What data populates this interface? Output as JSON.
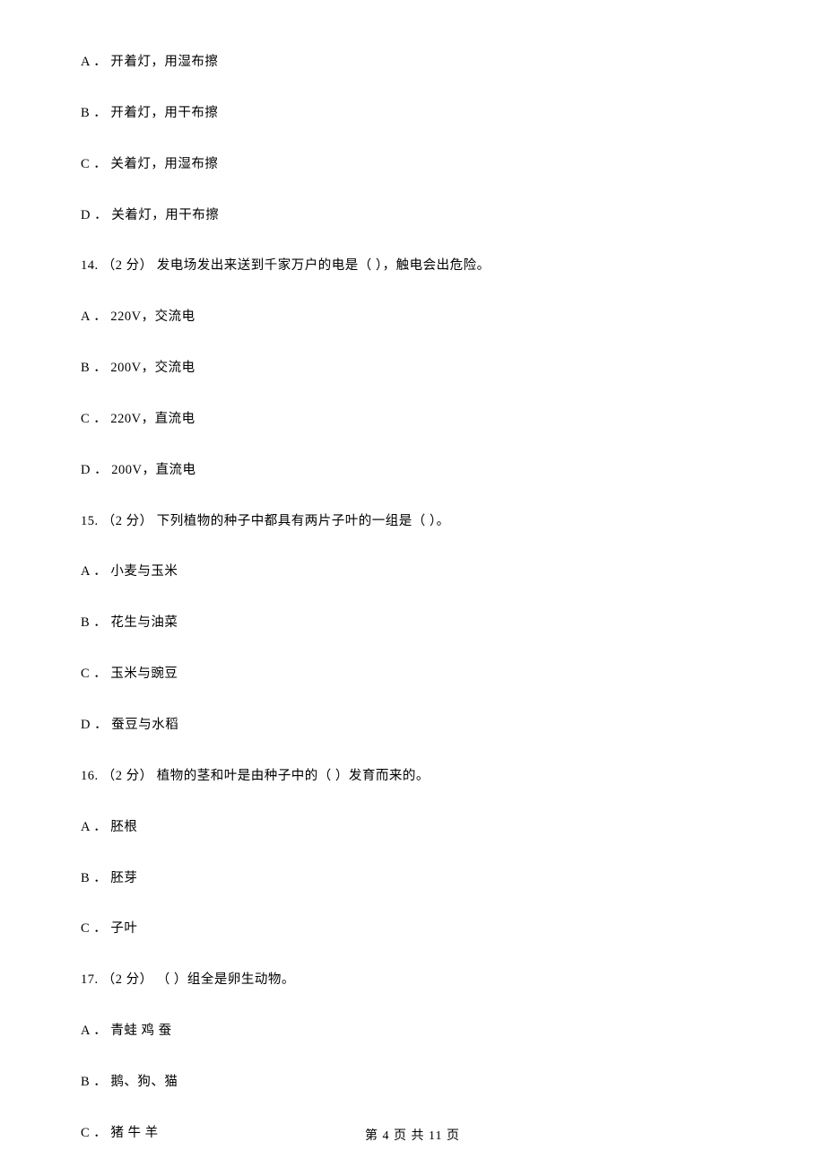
{
  "q13_options": {
    "A": "A ． 开着灯，用湿布擦",
    "B": "B ． 开着灯，用干布擦",
    "C": "C ． 关着灯，用湿布擦",
    "D": "D ． 关着灯，用干布擦"
  },
  "q14": {
    "stem": "14. （2 分） 发电场发出来送到千家万户的电是（    ），触电会出危险。",
    "A": "A ． 220V，交流电",
    "B": "B ． 200V，交流电",
    "C": "C ． 220V，直流电",
    "D": "D ． 200V，直流电"
  },
  "q15": {
    "stem": "15. （2 分） 下列植物的种子中都具有两片子叶的一组是（    ）。",
    "A": "A ． 小麦与玉米",
    "B": "B ． 花生与油菜",
    "C": "C ． 玉米与豌豆",
    "D": "D ． 蚕豆与水稻"
  },
  "q16": {
    "stem": "16. （2 分） 植物的茎和叶是由种子中的（    ）发育而来的。",
    "A": "A ． 胚根",
    "B": "B ． 胚芽",
    "C": "C ． 子叶"
  },
  "q17": {
    "stem": "17. （2 分） （    ）组全是卵生动物。",
    "A": "A ． 青蛙   鸡   蚕",
    "B": "B ． 鹅、狗、猫",
    "C": "C ． 猪   牛   羊"
  },
  "footer": "第 4 页 共 11 页"
}
